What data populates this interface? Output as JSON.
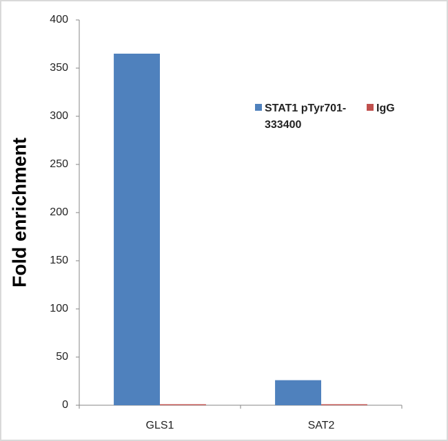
{
  "chart_data": {
    "type": "bar",
    "y_label": "Fold enrichment",
    "categories": [
      "GLS1",
      "SAT2"
    ],
    "series": [
      {
        "name": "STAT1 pTyr701-333400",
        "color": "#4f81bd",
        "values": [
          365,
          26
        ]
      },
      {
        "name": "IgG",
        "color": "#c0504d",
        "values": [
          1,
          1
        ]
      }
    ],
    "ylim": [
      0,
      400
    ],
    "yticks": [
      0,
      50,
      100,
      150,
      200,
      250,
      300,
      350,
      400
    ],
    "grid": false
  }
}
